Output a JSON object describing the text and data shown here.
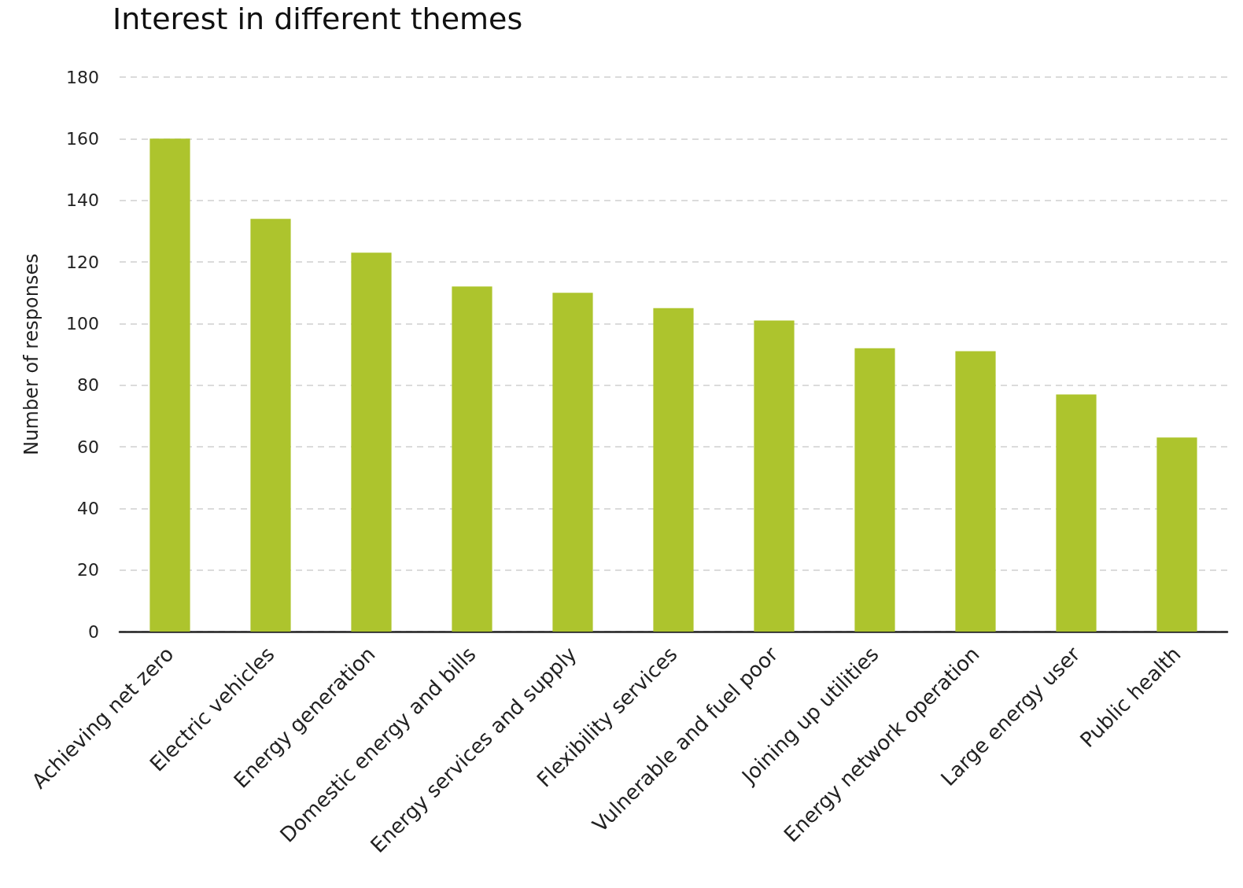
{
  "chart_data": {
    "type": "bar",
    "title": "Interest in different themes",
    "ylabel": "Number of responses",
    "categories": [
      "Achieving net zero",
      "Electric vehicles",
      "Energy generation",
      "Domestic energy and bills",
      "Energy services and supply",
      "Flexibility services",
      "Vulnerable and fuel poor",
      "Joining up utilities",
      "Energy network operation",
      "Large energy user",
      "Public health"
    ],
    "values": [
      160,
      134,
      123,
      112,
      110,
      105,
      101,
      92,
      91,
      77,
      63
    ],
    "color": "#adc42d",
    "ylim": [
      0,
      180
    ],
    "yticks": [
      0,
      20,
      40,
      60,
      80,
      100,
      120,
      140,
      160,
      180
    ],
    "grid": "y"
  }
}
